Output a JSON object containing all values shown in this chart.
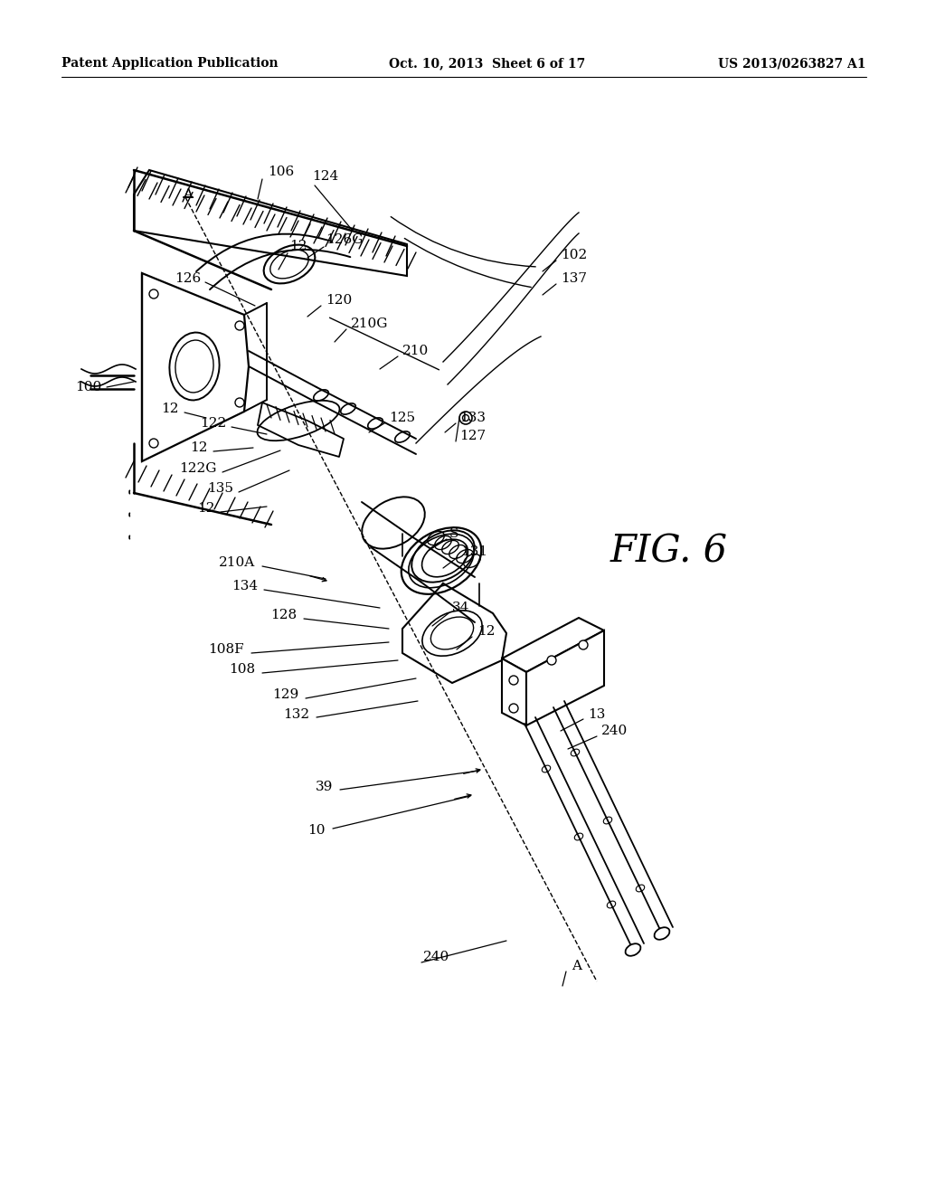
{
  "bg_color": "#ffffff",
  "header_left": "Patent Application Publication",
  "header_center": "Oct. 10, 2013  Sheet 6 of 17",
  "header_right": "US 2013/0263827 A1",
  "fig_label": "FIG. 6",
  "header_fontsize": 10,
  "fig_fontsize": 30,
  "label_fontsize": 11
}
